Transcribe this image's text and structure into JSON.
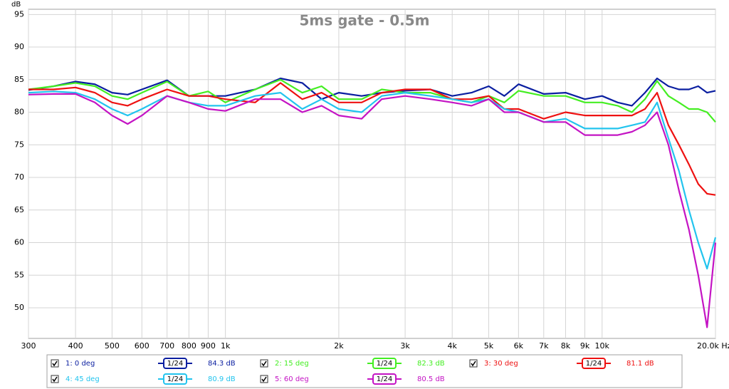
{
  "chart_data": {
    "type": "line",
    "title": "5ms gate - 0.5m",
    "y_label": "dB",
    "log_x": true,
    "grid": true,
    "xlim": [
      300,
      20000
    ],
    "ylim": [
      45.3,
      95.8
    ],
    "xticks": [
      300,
      400,
      500,
      600,
      700,
      800,
      900,
      {
        "value": 1000,
        "label": "1k"
      },
      {
        "value": 2000,
        "label": "2k"
      },
      {
        "value": 3000,
        "label": "3k"
      },
      {
        "value": 4000,
        "label": "4k"
      },
      {
        "value": 5000,
        "label": "5k"
      },
      {
        "value": 6000,
        "label": "6k"
      },
      {
        "value": 7000,
        "label": "7k"
      },
      {
        "value": 8000,
        "label": "8k"
      },
      {
        "value": 9000,
        "label": "9k"
      },
      {
        "value": 10000,
        "label": "10k"
      },
      {
        "value": 20000,
        "label": "20.0k Hz"
      }
    ],
    "yticks": [
      50,
      55,
      60,
      65,
      70,
      75,
      80,
      85,
      90,
      95
    ],
    "x": [
      300,
      350,
      400,
      450,
      500,
      550,
      600,
      700,
      800,
      900,
      1000,
      1200,
      1400,
      1600,
      1800,
      2000,
      2300,
      2600,
      3000,
      3500,
      4000,
      4500,
      5000,
      5500,
      6000,
      7000,
      8000,
      9000,
      10000,
      11000,
      12000,
      13000,
      14000,
      15000,
      16000,
      17000,
      18000,
      19000,
      20000
    ],
    "series": [
      {
        "name": "1: 0 deg",
        "color": "#0a1ea0",
        "smoothing": "1/24",
        "level": "84.3 dB",
        "values": [
          83.4,
          84,
          84.7,
          84.3,
          83,
          82.7,
          83.5,
          84.9,
          82.5,
          82.5,
          82.5,
          83.5,
          85.2,
          84.5,
          82,
          83,
          82.5,
          83,
          83.3,
          83.5,
          82.5,
          83,
          84,
          82.5,
          84.3,
          82.8,
          83,
          82,
          82.5,
          81.5,
          81,
          83,
          85.2,
          84,
          83.5,
          83.5,
          84,
          83,
          83.3
        ]
      },
      {
        "name": "2: 15 deg",
        "color": "#44ee22",
        "smoothing": "1/24",
        "level": "82.3 dB",
        "values": [
          83.5,
          84,
          84.5,
          84,
          82.5,
          82,
          83,
          84.7,
          82.5,
          83.2,
          81.5,
          83.5,
          85,
          83,
          84,
          82,
          82,
          83.5,
          83,
          83,
          82,
          81.5,
          82.5,
          81.5,
          83.3,
          82.5,
          82.5,
          81.5,
          81.5,
          81,
          80,
          82,
          84.8,
          82.5,
          81.5,
          80.5,
          80.5,
          80,
          78.5
        ]
      },
      {
        "name": "3: 30 deg",
        "color": "#ee1111",
        "smoothing": "1/24",
        "level": "81.1 dB",
        "values": [
          83.5,
          83.5,
          83.8,
          83,
          81.5,
          81,
          82,
          83.5,
          82.5,
          82.5,
          82,
          81.5,
          84.5,
          82,
          83,
          81.5,
          81.5,
          83,
          83.5,
          83.5,
          82,
          82,
          82.5,
          80.5,
          80.5,
          79,
          80,
          79.5,
          79.5,
          79.5,
          79.5,
          80.5,
          83,
          78,
          75,
          72,
          69,
          67.5,
          67.3
        ]
      },
      {
        "name": "4: 45 deg",
        "color": "#22c4ee",
        "smoothing": "1/24",
        "level": "80.9 dB",
        "values": [
          83,
          83.2,
          83,
          82,
          80.5,
          79.5,
          80.5,
          82.5,
          81.5,
          81,
          81,
          82.5,
          83,
          80.5,
          82,
          80.5,
          80,
          82.5,
          83,
          82.5,
          82,
          81.5,
          82,
          80.5,
          80,
          78.5,
          79,
          77.5,
          77.5,
          77.5,
          78,
          78.5,
          81.5,
          76,
          71,
          65,
          60,
          56,
          60.8
        ]
      },
      {
        "name": "5: 60 deg",
        "color": "#c414c4",
        "smoothing": "1/24",
        "level": "80.5 dB",
        "values": [
          82.7,
          82.8,
          82.8,
          81.5,
          79.5,
          78.2,
          79.5,
          82.5,
          81.5,
          80.5,
          80.2,
          82,
          82,
          80,
          81,
          79.5,
          79,
          82,
          82.5,
          82,
          81.5,
          81,
          82,
          80,
          80,
          78.5,
          78.5,
          76.5,
          76.5,
          76.5,
          77,
          78,
          80,
          75,
          68,
          62,
          55,
          47,
          60
        ]
      }
    ]
  }
}
